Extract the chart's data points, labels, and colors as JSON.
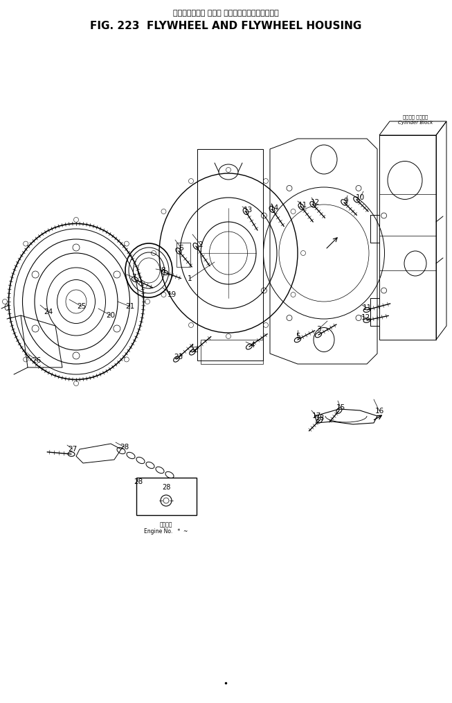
{
  "title_japanese": "フライホイール および フライホイールハウジング",
  "title_english": "FIG. 223  FLYWHEEL AND FLYWHEEL HOUSING",
  "bg_color": "#ffffff",
  "fig_width": 6.53,
  "fig_height": 10.14,
  "dpi": 100,
  "annotation_cylinder_block_jp": "シリンダ ブロック",
  "annotation_cylinder_block_en": "Cylinder Block",
  "annotation_engine_no_jp": "適用年号",
  "annotation_engine_no_en": "Engine No.   *  ~",
  "lc": "black",
  "lw": 0.7
}
